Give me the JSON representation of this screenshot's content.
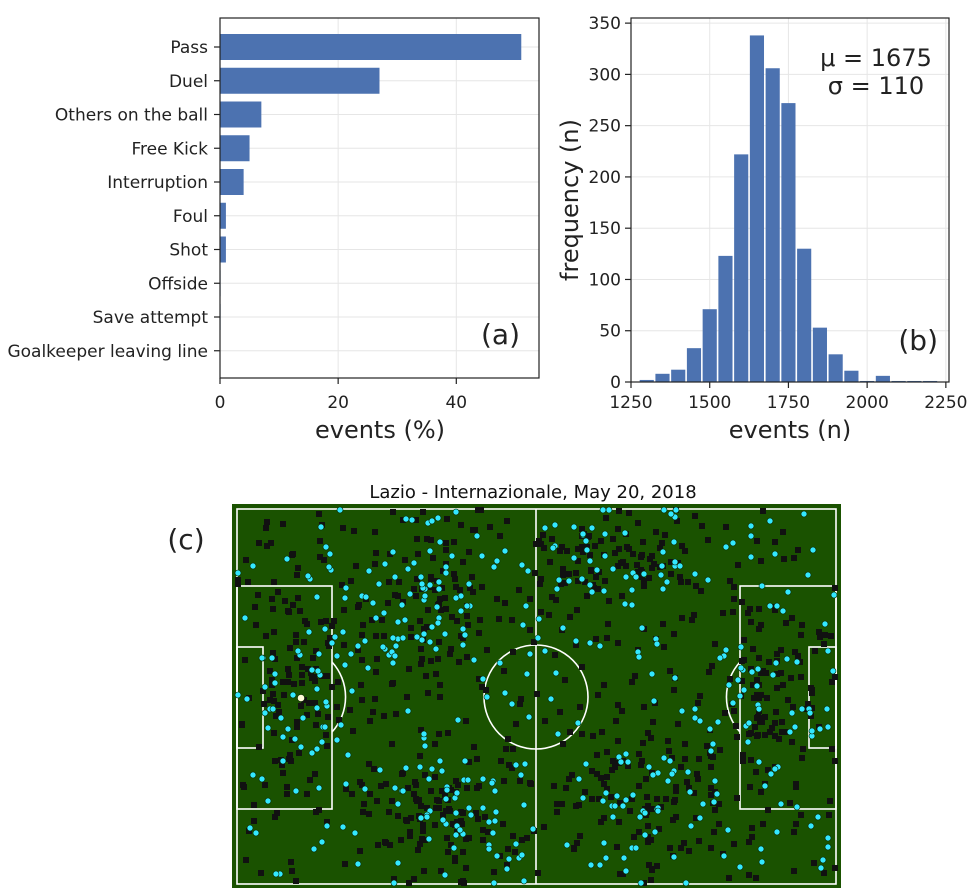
{
  "chart_data": [
    {
      "type": "bar",
      "orientation": "horizontal",
      "panel_label": "(a)",
      "categories": [
        "Pass",
        "Duel",
        "Others on the ball",
        "Free Kick",
        "Interruption",
        "Foul",
        "Shot",
        "Offside",
        "Save attempt",
        "Goalkeeper leaving line"
      ],
      "values": [
        51,
        27,
        7,
        5,
        4,
        1,
        1,
        0.1,
        0.1,
        0.05
      ],
      "xlabel": "events (%)",
      "xlim": [
        0,
        54
      ],
      "xticks": [
        "0",
        "20",
        "40"
      ],
      "grid": true,
      "bar_color": "#4c72b0"
    },
    {
      "type": "bar",
      "subtype": "histogram",
      "panel_label": "(b)",
      "bin_width": 50,
      "x": [
        1300,
        1350,
        1400,
        1450,
        1500,
        1550,
        1600,
        1650,
        1700,
        1750,
        1800,
        1850,
        1900,
        1950,
        2000,
        2050,
        2100,
        2150,
        2200
      ],
      "values": [
        2,
        8,
        12,
        33,
        71,
        123,
        222,
        338,
        306,
        272,
        130,
        53,
        27,
        11,
        1,
        6,
        1,
        1,
        1
      ],
      "xlabel": "events (n)",
      "ylabel": "frequency (n)",
      "xlim": [
        1250,
        2260
      ],
      "ylim": [
        0,
        355
      ],
      "xticks": [
        "1250",
        "1500",
        "1750",
        "2000",
        "2250"
      ],
      "yticks": [
        "0",
        "50",
        "100",
        "150",
        "200",
        "250",
        "300",
        "350"
      ],
      "annotation_mu": "μ = 1675",
      "annotation_sigma": "σ = 110",
      "grid": true,
      "bar_color": "#4c72b0"
    },
    {
      "type": "scatter",
      "panel_label": "(c)",
      "title": "Lazio - Internazionale, May 20, 2018",
      "pitch_color": "#1a5200",
      "series": [
        {
          "marker": "square",
          "color": "#111111"
        },
        {
          "marker": "circle",
          "color": "#33e8ff"
        }
      ]
    }
  ]
}
